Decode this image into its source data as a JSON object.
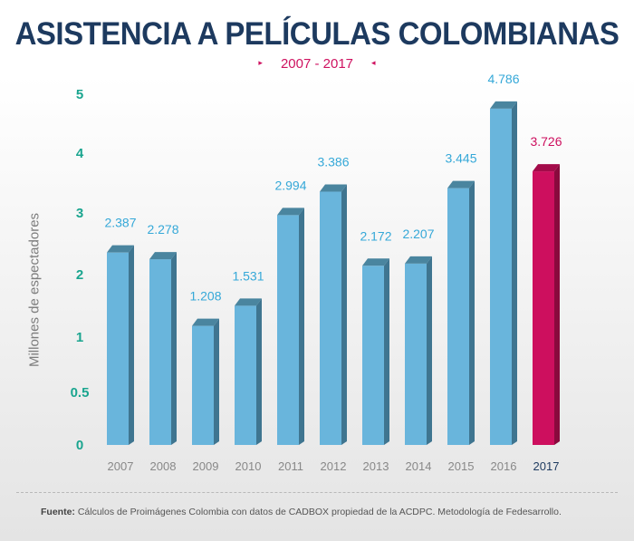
{
  "title": "ASISTENCIA A PELÍCULAS COLOMBIANAS",
  "subtitle": "2007 - 2017",
  "subtitle_markers": {
    "left": "▸",
    "right": "◂"
  },
  "colors": {
    "bar_front": "#69b5dc",
    "bar_side": "#3f7590",
    "bar_top": "#4a859f",
    "bar_highlight_front": "#cd0f5e",
    "bar_highlight_side": "#890a3d",
    "bar_highlight_top": "#a30b4a",
    "label": "#35a8d8",
    "label_highlight": "#cd0f5e",
    "ytick": "#1aa58f",
    "xtick": "#888888",
    "xtick_highlight": "#1d3a5f"
  },
  "chart_data": {
    "type": "bar",
    "title": "ASISTENCIA A PELÍCULAS COLOMBIANAS",
    "subtitle": "2007 - 2017",
    "ylabel": "Millones de espectadores",
    "xlabel": "",
    "categories": [
      "2007",
      "2008",
      "2009",
      "2010",
      "2011",
      "2012",
      "2013",
      "2014",
      "2015",
      "2016",
      "2017"
    ],
    "values": [
      2.387,
      2.278,
      1.208,
      1.531,
      2.994,
      3.386,
      2.172,
      2.207,
      3.445,
      4.786,
      3.726
    ],
    "value_labels": [
      "2.387",
      "2.278",
      "1.208",
      "1.531",
      "2.994",
      "3.386",
      "2.172",
      "2.207",
      "3.445",
      "4.786",
      "3.726"
    ],
    "highlight_category": "2017",
    "yticks": [
      0,
      0.5,
      1,
      2,
      3,
      4,
      5
    ],
    "ytick_labels": [
      "0",
      "0.5",
      "1",
      "2",
      "3",
      "4",
      "5"
    ],
    "ylim": [
      0,
      5
    ],
    "grid": false,
    "legend": "none"
  },
  "footnote": {
    "label": "Fuente:",
    "text": " Cálculos de Proimágenes Colombia con datos de CADBOX propiedad de la ACDPC. Metodología de Fedesarrollo."
  }
}
